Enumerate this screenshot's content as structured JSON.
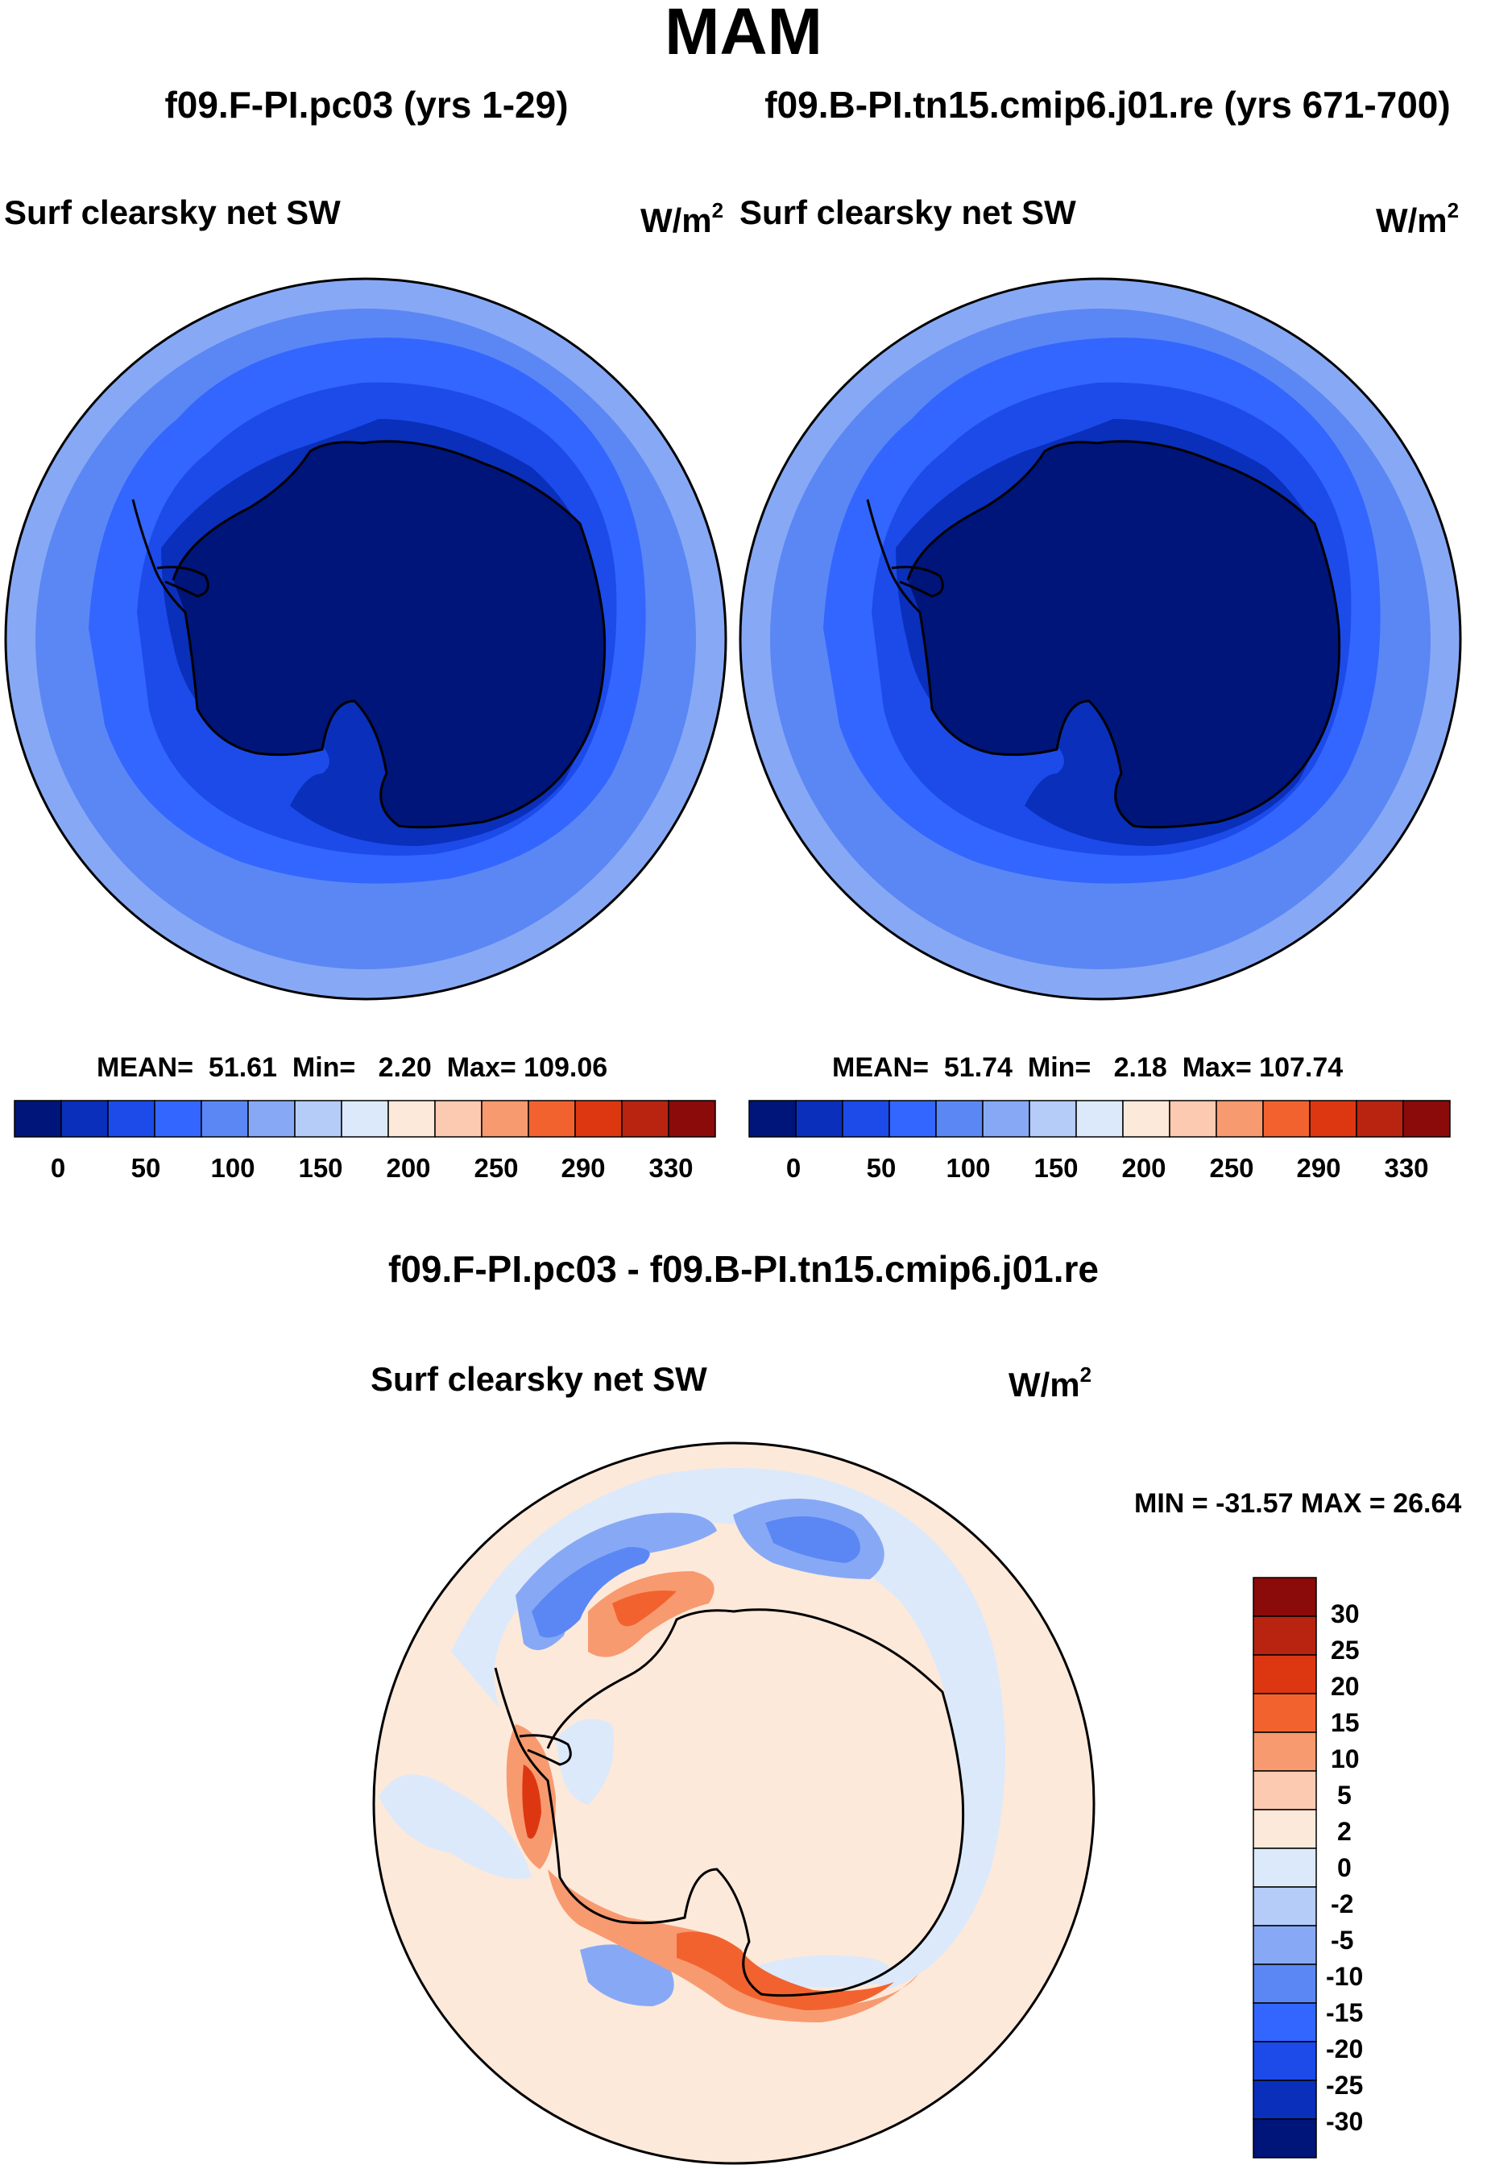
{
  "figure": {
    "season": "MAM",
    "panels": [
      {
        "case_title": "f09.F-PI.pc03 (yrs 1-29)",
        "variable": "Surf clearsky net SW",
        "units": "W/m",
        "units_exp": "2",
        "stats": {
          "mean_label": "MEAN=",
          "mean": "51.61",
          "min_label": "Min=",
          "min": "2.20",
          "max_label": "Max=",
          "max": "109.06"
        }
      },
      {
        "case_title": "f09.B-PI.tn15.cmip6.j01.re (yrs 671-700)",
        "variable": "Surf clearsky net SW",
        "units": "W/m",
        "units_exp": "2",
        "stats": {
          "mean_label": "MEAN=",
          "mean": "51.74",
          "min_label": "Min=",
          "min": "2.18",
          "max_label": "Max=",
          "max": "107.74"
        }
      }
    ],
    "difference": {
      "title": "f09.F-PI.pc03 - f09.B-PI.tn15.cmip6.j01.re",
      "variable": "Surf clearsky net SW",
      "units": "W/m",
      "units_exp": "2",
      "minmax": "MIN = -31.57 MAX =  26.64"
    },
    "colorbar_abs": {
      "labels": [
        "0",
        "50",
        "100",
        "150",
        "200",
        "250",
        "290",
        "330"
      ],
      "colors": [
        "#00157a",
        "#0a2fbb",
        "#1c4bea",
        "#3366ff",
        "#5b87f5",
        "#87a9f5",
        "#b5ccf8",
        "#dce9fb",
        "#fde9da",
        "#fccab0",
        "#f89a6f",
        "#f2622f",
        "#dd3711",
        "#b92410",
        "#8b0a0a"
      ]
    },
    "colorbar_diff": {
      "labels": [
        "30",
        "25",
        "20",
        "15",
        "10",
        "5",
        "2",
        "0",
        "-2",
        "-5",
        "-10",
        "-15",
        "-20",
        "-25",
        "-30"
      ],
      "colors": [
        "#8b0a0a",
        "#b92410",
        "#dd3711",
        "#f2622f",
        "#f89a6f",
        "#fccab0",
        "#fde9da",
        "#dce9fb",
        "#b5ccf8",
        "#87a9f5",
        "#5b87f5",
        "#3366ff",
        "#1c4bea",
        "#0a2fbb",
        "#00157a"
      ]
    }
  }
}
